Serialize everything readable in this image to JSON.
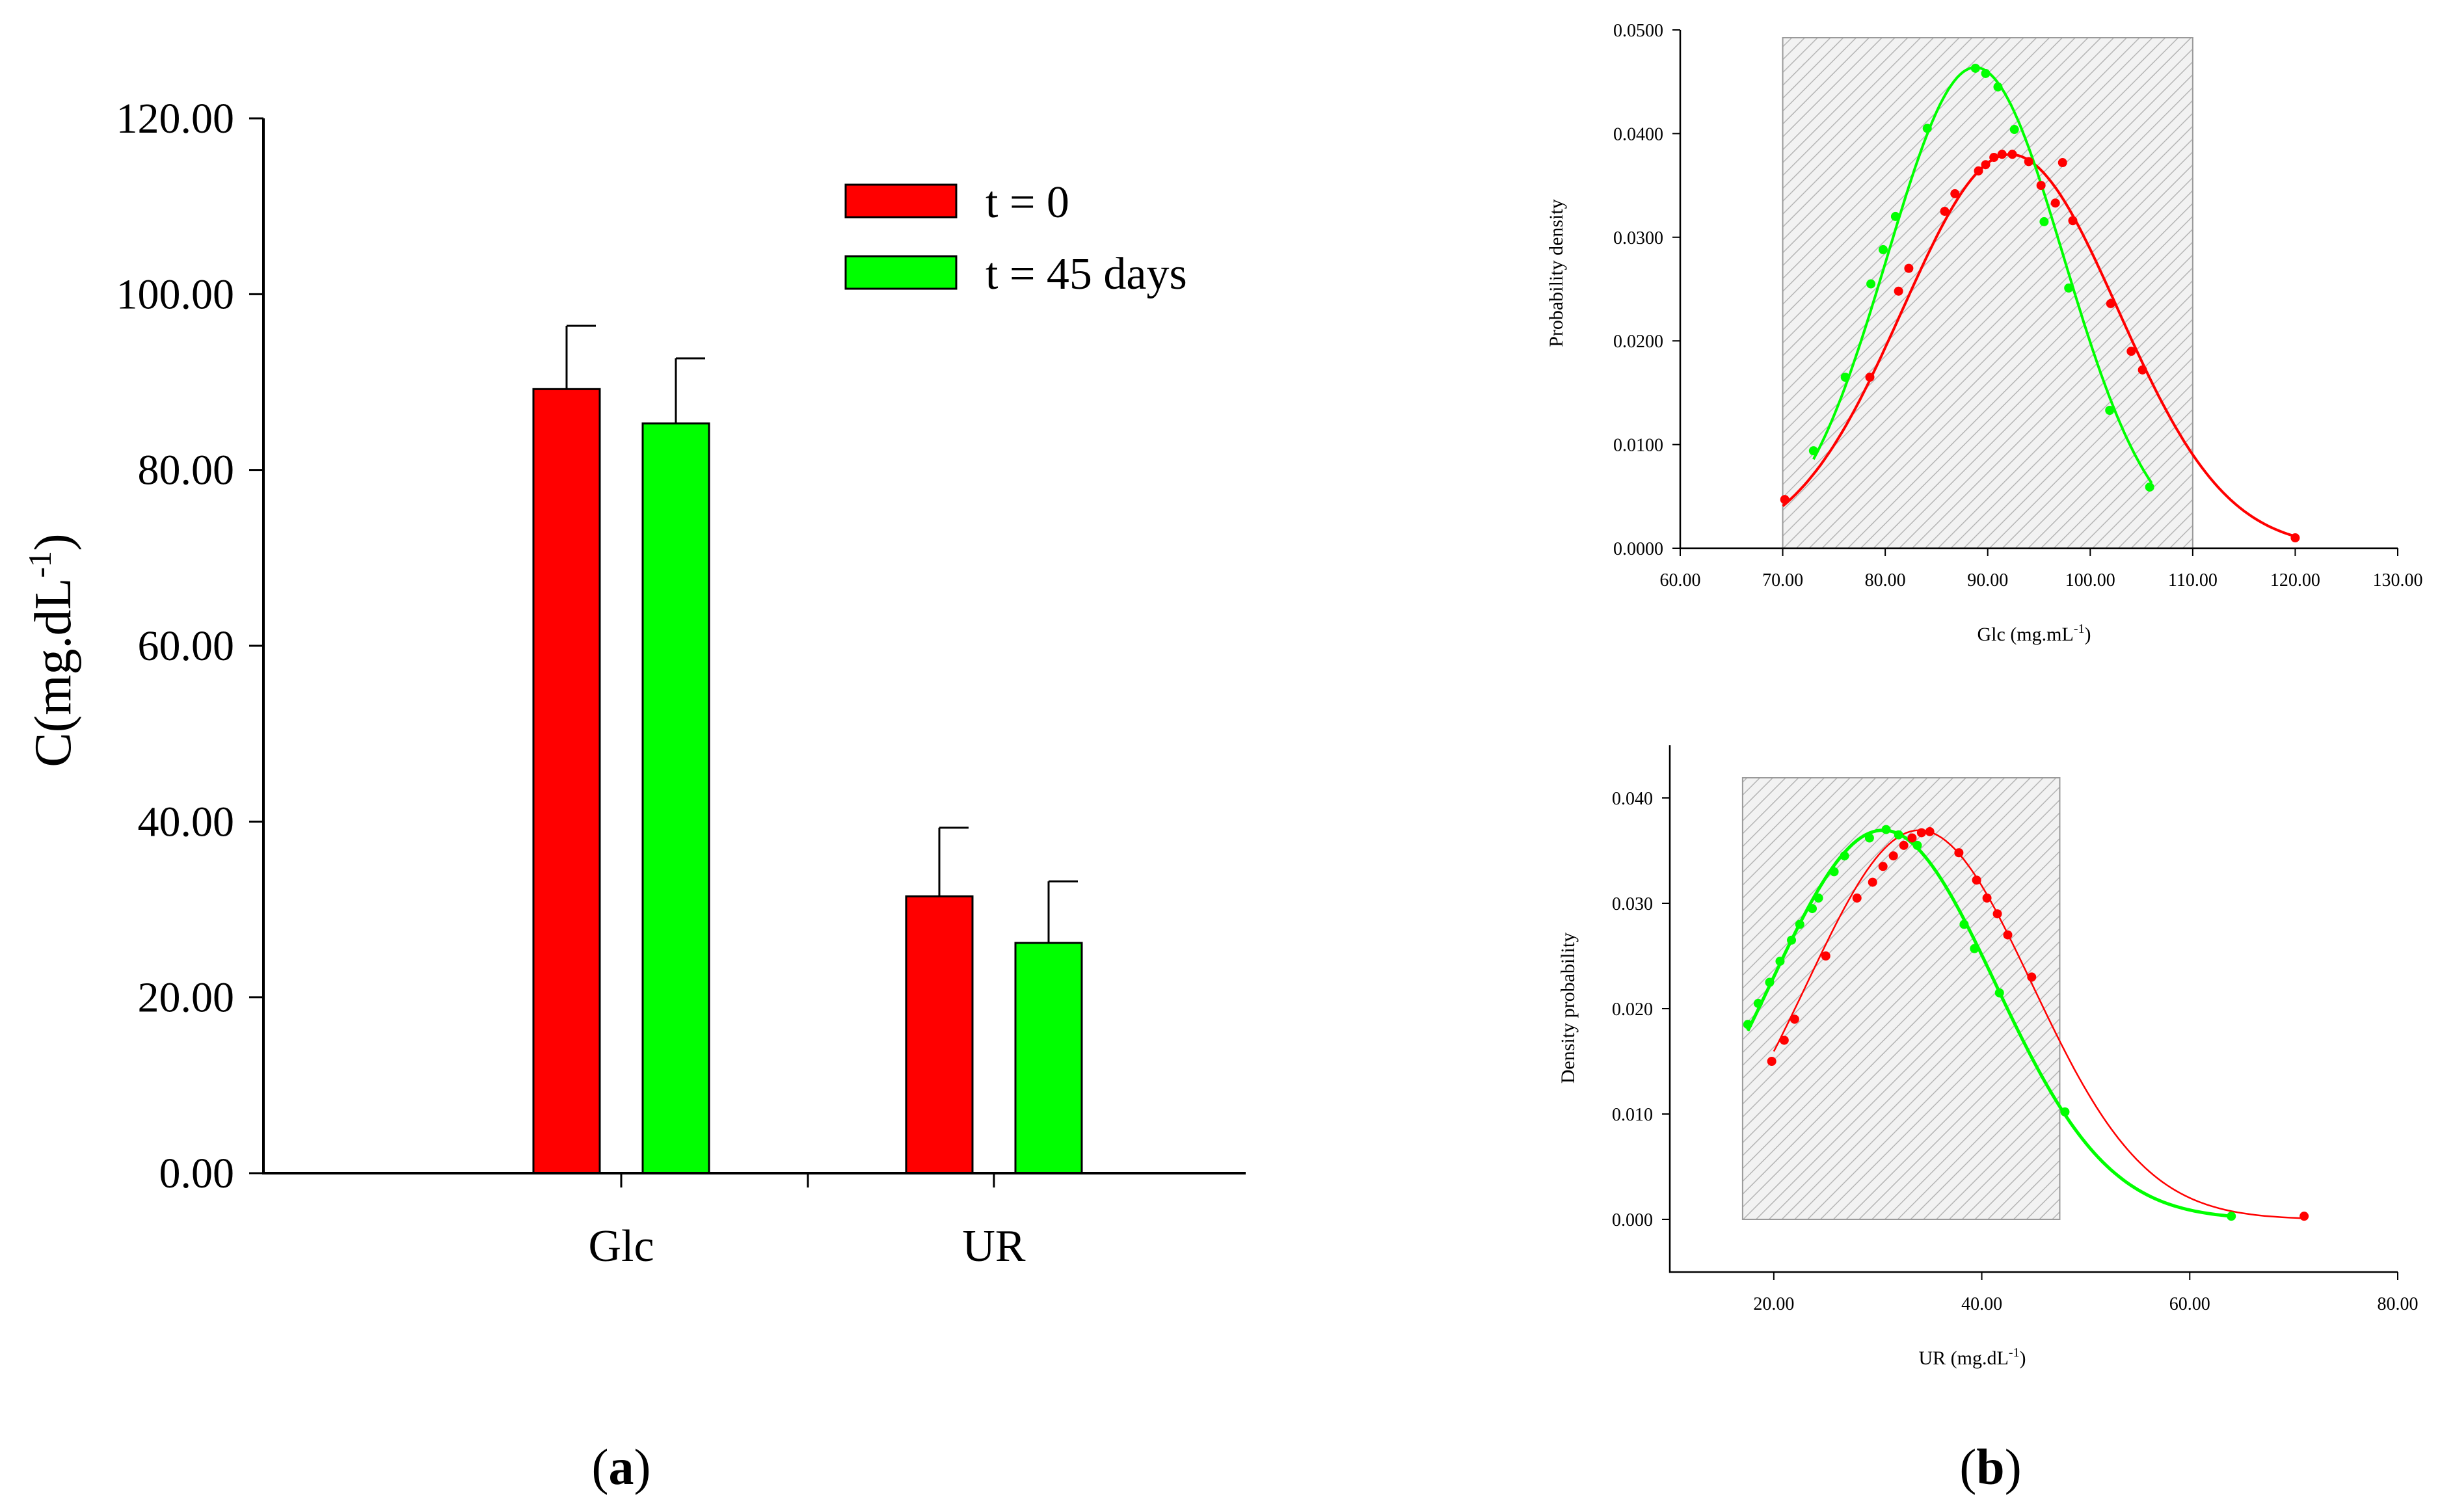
{
  "panel_labels": {
    "a": "(a)",
    "b": "(b)"
  },
  "colors": {
    "t0": "#ff0000",
    "t45": "#00ff00"
  },
  "chart_data": [
    {
      "id": "bar",
      "type": "bar",
      "title": "",
      "ylabel": "C(mg.dL",
      "ylabel_sup": "-1",
      "ylabel_close": ")",
      "categories": [
        "Glc",
        "UR"
      ],
      "ylim": [
        0,
        120
      ],
      "yticks": [
        0,
        20,
        40,
        60,
        80,
        100,
        120
      ],
      "ytick_labels": [
        "0.00",
        "20.00",
        "40.00",
        "60.00",
        "80.00",
        "100.00",
        "120.00"
      ],
      "series": [
        {
          "name": "t = 0",
          "color": "#ff0000",
          "values": [
            89.2,
            31.5
          ],
          "errors": [
            7.2,
            7.8
          ]
        },
        {
          "name": "t = 45 days",
          "color": "#00ff00",
          "values": [
            85.3,
            26.2
          ],
          "errors": [
            7.4,
            7.0
          ]
        }
      ]
    },
    {
      "id": "glc",
      "type": "line",
      "xlabel": "Glc (mg.mL",
      "xlabel_sup": "-1",
      "xlabel_close": ")",
      "ylabel": "Probability density",
      "xlim": [
        60,
        130
      ],
      "ylim": [
        0,
        0.05
      ],
      "xticks": [
        60,
        70,
        80,
        90,
        100,
        110,
        120,
        130
      ],
      "xtick_labels": [
        "60.00",
        "70.00",
        "80.00",
        "90.00",
        "100.00",
        "110.00",
        "120.00",
        "130.00"
      ],
      "yticks": [
        0,
        0.01,
        0.02,
        0.03,
        0.04,
        0.05
      ],
      "ytick_labels": [
        "0.0000",
        "0.0100",
        "0.0200",
        "0.0300",
        "0.0400",
        "0.0500"
      ],
      "shaded_range": [
        70,
        110
      ],
      "series": [
        {
          "name": "t = 0",
          "color": "#ff0000",
          "mean": 92.2,
          "sd": 10.5,
          "x_range": [
            70,
            120
          ],
          "x": [
            70.2,
            78.5,
            81.3,
            82.3,
            85.8,
            86.8,
            89.1,
            89.8,
            90.6,
            91.4,
            92.4,
            94.0,
            95.2,
            96.6,
            97.3,
            98.3,
            102.0,
            104.0,
            105.1,
            120.0
          ],
          "y": [
            0.0047,
            0.0165,
            0.0248,
            0.027,
            0.0325,
            0.0342,
            0.0364,
            0.037,
            0.0377,
            0.038,
            0.038,
            0.0373,
            0.035,
            0.0333,
            0.0372,
            0.0316,
            0.0236,
            0.019,
            0.0172,
            0.001
          ]
        },
        {
          "name": "t = 45 days",
          "color": "#00ff00",
          "mean": 88.8,
          "sd": 8.6,
          "x_range": [
            73,
            106
          ],
          "x": [
            73.0,
            76.1,
            78.6,
            79.8,
            81.0,
            84.1,
            88.8,
            89.8,
            91.0,
            92.6,
            95.5,
            97.9,
            101.9,
            105.8
          ],
          "y": [
            0.0094,
            0.0165,
            0.0255,
            0.0288,
            0.032,
            0.0405,
            0.0463,
            0.0458,
            0.0445,
            0.0404,
            0.0315,
            0.0251,
            0.0133,
            0.0059
          ]
        }
      ]
    },
    {
      "id": "ur",
      "type": "line",
      "xlabel": "UR (mg.dL",
      "xlabel_sup": "-1",
      "xlabel_close": ")",
      "ylabel": "Density probability",
      "xlim": [
        10,
        80
      ],
      "ylim": [
        -0.005,
        0.045
      ],
      "xticks": [
        20,
        40,
        60,
        80
      ],
      "xtick_labels": [
        "20.00",
        "40.00",
        "60.00",
        "80.00"
      ],
      "yticks": [
        0,
        0.01,
        0.02,
        0.03,
        0.04
      ],
      "ytick_labels": [
        "0.000",
        "0.010",
        "0.020",
        "0.030",
        "0.040"
      ],
      "shaded_range": [
        17,
        47.5
      ],
      "series": [
        {
          "name": "t = 0",
          "color": "#ff0000",
          "mean": 34.0,
          "sd": 10.8,
          "x_range": [
            20,
            71
          ],
          "x": [
            19.8,
            21.0,
            22.0,
            25.0,
            28.0,
            29.5,
            30.5,
            31.5,
            32.5,
            33.3,
            34.2,
            35.0,
            37.8,
            39.5,
            40.5,
            41.5,
            42.5,
            44.8,
            71.0
          ],
          "y": [
            0.015,
            0.017,
            0.019,
            0.025,
            0.0305,
            0.032,
            0.0335,
            0.0345,
            0.0355,
            0.0362,
            0.0367,
            0.0368,
            0.0348,
            0.0322,
            0.0305,
            0.029,
            0.027,
            0.023,
            0.0003
          ]
        },
        {
          "name": "t = 45 days",
          "color": "#00ff00",
          "mean": 30.5,
          "sd": 10.8,
          "x_range": [
            17.5,
            64
          ],
          "x": [
            17.5,
            18.5,
            19.6,
            20.6,
            21.7,
            22.5,
            23.7,
            24.3,
            25.8,
            26.8,
            29.2,
            30.8,
            32.0,
            33.8,
            38.3,
            39.3,
            41.7,
            48.0,
            64.0
          ],
          "y": [
            0.0185,
            0.0205,
            0.0225,
            0.0245,
            0.0265,
            0.028,
            0.0295,
            0.0305,
            0.033,
            0.0345,
            0.0362,
            0.037,
            0.0365,
            0.0355,
            0.028,
            0.0257,
            0.0215,
            0.0102,
            0.0003
          ]
        }
      ]
    }
  ]
}
